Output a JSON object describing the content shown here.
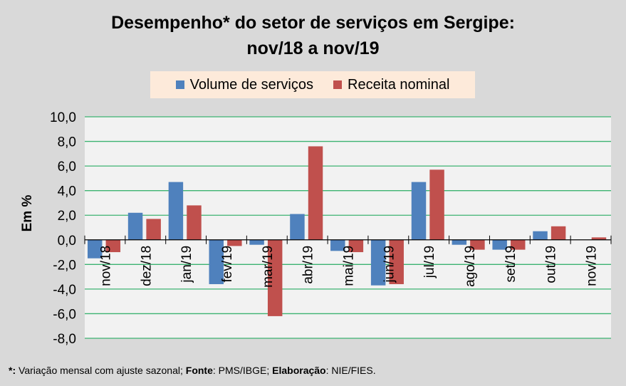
{
  "title_line1": "Desempenho* do setor de serviços em Sergipe:",
  "title_line2": "nov/18 a nov/19",
  "footnote": {
    "p1": "*:",
    "p2": " Variação mensal com ajuste sazonal; ",
    "p3": "Fonte",
    "p4": ": PMS/IBGE; ",
    "p5": "Elaboração",
    "p6": ": NIE/FIES."
  },
  "chart_data": {
    "type": "bar",
    "title": "Desempenho* do setor de serviços em Sergipe: nov/18 a nov/19",
    "ylabel": "Em %",
    "xlabel": "",
    "ylim": [
      -8,
      10
    ],
    "yticks": [
      "10,0",
      "8,0",
      "6,0",
      "4,0",
      "2,0",
      "0,0",
      "-2,0",
      "-4,0",
      "-6,0",
      "-8,0"
    ],
    "grid": true,
    "legend_position": "top",
    "categories": [
      "nov/18",
      "dez/18",
      "jan/19",
      "fev/19",
      "mar/19",
      "abr/19",
      "mai/19",
      "jun/19",
      "jul/19",
      "ago/19",
      "set/19",
      "out/19",
      "nov/19"
    ],
    "series": [
      {
        "name": "Volume de serviços",
        "color": "#4f81bd",
        "values": [
          -1.5,
          2.2,
          4.7,
          -3.6,
          -0.4,
          2.1,
          -0.9,
          -3.7,
          4.7,
          -0.4,
          -0.8,
          0.7,
          0.0
        ]
      },
      {
        "name": "Receita nominal",
        "color": "#c0504d",
        "values": [
          -1.0,
          1.7,
          2.8,
          -0.5,
          -6.2,
          7.6,
          -1.0,
          -3.6,
          5.7,
          -0.8,
          -0.8,
          1.1,
          0.2
        ]
      }
    ]
  }
}
